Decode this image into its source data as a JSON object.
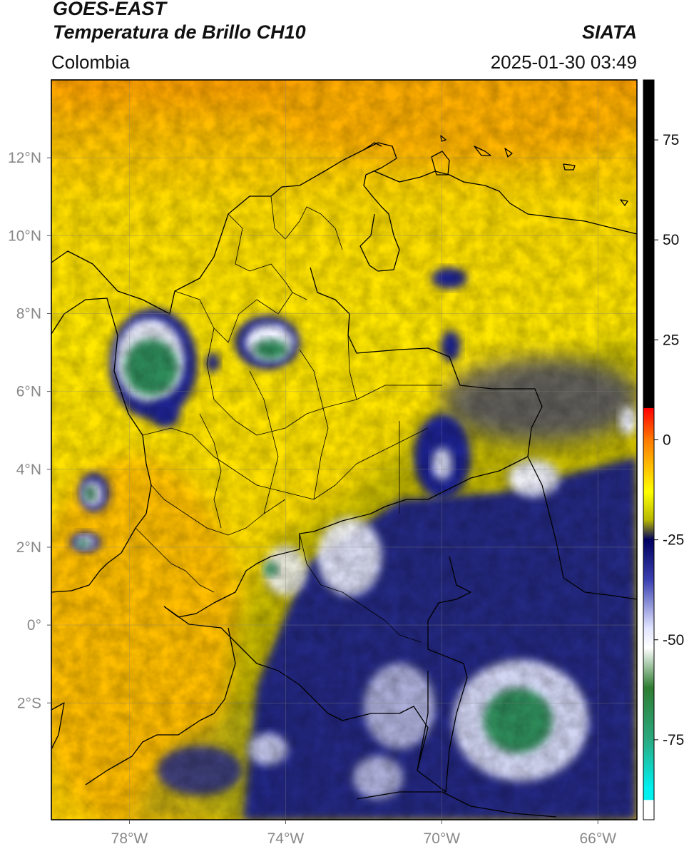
{
  "header": {
    "line1": "GOES-EAST",
    "line2": "Temperatura de Brillo CH10",
    "region": "Colombia",
    "agency": "SIATA",
    "datetime": "2025-01-30 03:49"
  },
  "map": {
    "lon_range": [
      -80.0,
      -65.0
    ],
    "lat_range": [
      -5.0,
      14.0
    ],
    "lon_ticks": [
      {
        "value": -78,
        "label": "78°W"
      },
      {
        "value": -74,
        "label": "74°W"
      },
      {
        "value": -70,
        "label": "70°W"
      },
      {
        "value": -66,
        "label": "66°W"
      }
    ],
    "lat_ticks": [
      {
        "value": 12,
        "label": "12°N"
      },
      {
        "value": 10,
        "label": "10°N"
      },
      {
        "value": 8,
        "label": "8°N"
      },
      {
        "value": 6,
        "label": "6°N"
      },
      {
        "value": 4,
        "label": "4°N"
      },
      {
        "value": 2,
        "label": "2°N"
      },
      {
        "value": 0,
        "label": "0°"
      },
      {
        "value": -2,
        "label": "2°S"
      }
    ],
    "grid": true,
    "colors": {
      "warm": "#ffa200",
      "yellow": "#ffe600",
      "olive": "#b6b000",
      "navy": "#141c8c",
      "white": "#f2f4ff",
      "green": "#2e8c5a"
    }
  },
  "colorbar": {
    "range": [
      -95,
      90
    ],
    "ticks": [
      {
        "value": 75,
        "label": "75"
      },
      {
        "value": 50,
        "label": "50"
      },
      {
        "value": 25,
        "label": "25"
      },
      {
        "value": 0,
        "label": "0"
      },
      {
        "value": -25,
        "label": "-25"
      },
      {
        "value": -50,
        "label": "-50"
      },
      {
        "value": -75,
        "label": "-75"
      }
    ],
    "stops": [
      {
        "value": 90,
        "color": "#000000"
      },
      {
        "value": 8,
        "color": "#000000"
      },
      {
        "value": 7.9,
        "color": "#ff0000"
      },
      {
        "value": 0,
        "color": "#ff7a00"
      },
      {
        "value": -8,
        "color": "#ffcc00"
      },
      {
        "value": -13,
        "color": "#ffff00"
      },
      {
        "value": -20,
        "color": "#b8b800"
      },
      {
        "value": -25,
        "color": "#000060"
      },
      {
        "value": -35,
        "color": "#3a40b0"
      },
      {
        "value": -47,
        "color": "#e0e4ff"
      },
      {
        "value": -52,
        "color": "#ffffff"
      },
      {
        "value": -62,
        "color": "#2e7d32"
      },
      {
        "value": -75,
        "color": "#2aaa80"
      },
      {
        "value": -87,
        "color": "#00f0f0"
      },
      {
        "value": -90,
        "color": "#00f0f0"
      },
      {
        "value": -90.1,
        "color": "#ffffff"
      },
      {
        "value": -95,
        "color": "#ffffff"
      }
    ]
  }
}
